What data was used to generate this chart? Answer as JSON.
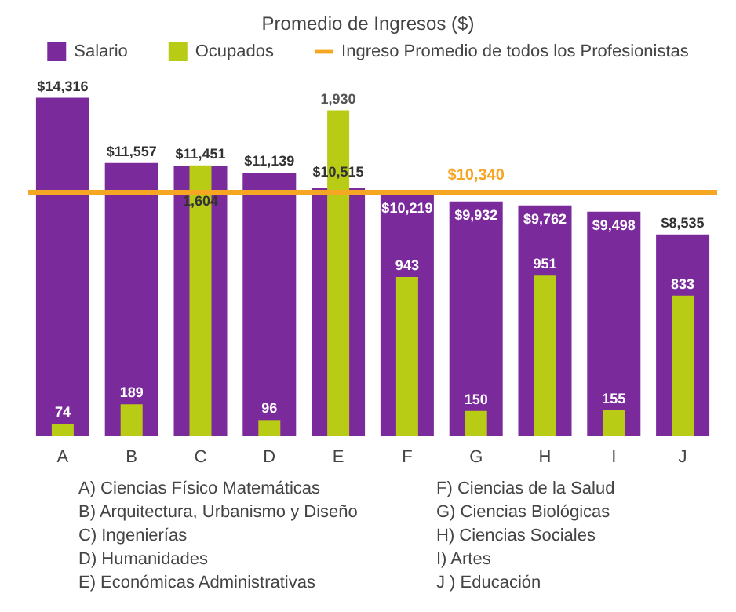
{
  "chart_data": {
    "type": "bar",
    "title": "Promedio de Ingresos ($)",
    "categories": [
      "A",
      "B",
      "C",
      "D",
      "E",
      "F",
      "G",
      "H",
      "I",
      "J"
    ],
    "series": [
      {
        "name": "Salario",
        "color": "#7b2a9c",
        "values": [
          14316,
          11557,
          11451,
          11139,
          10515,
          10219,
          9932,
          9762,
          9498,
          8535
        ],
        "value_labels": [
          "$14,316",
          "$11,557",
          "$11,451",
          "$11,139",
          "$10,515",
          "$10,219",
          "$9,932",
          "$9,762",
          "$9,498",
          "$8,535"
        ]
      },
      {
        "name": "Ocupados",
        "color": "#b8cc16",
        "axis": "y2",
        "values": [
          74,
          189,
          1604,
          96,
          1930,
          943,
          150,
          951,
          155,
          833
        ],
        "value_labels": [
          "74",
          "189",
          "1,604",
          "96",
          "1,930",
          "943",
          "150",
          "951",
          "155",
          "833"
        ]
      }
    ],
    "tick_labels": "x",
    "legend": "top",
    "ref_lines": [
      {
        "axis": "y",
        "value": 10340,
        "label": "Ingreso Promedio de todos los Profesionistas",
        "color": "#f5a623"
      }
    ],
    "annotations": [
      {
        "text": "$10,340",
        "x": "G",
        "y": 10340
      },
      "A) Ciencias Físico Matemáticas",
      "B) Arquitectura, Urbanismo y Diseño",
      "C) Ingenierías",
      "D) Humanidades",
      "E) Económicas Administrativas",
      "F) Ciencias de la Salud",
      "G) Ciencias Biológicas",
      "H) Ciencias Sociales",
      "I) Artes",
      "J ) Educación"
    ]
  }
}
